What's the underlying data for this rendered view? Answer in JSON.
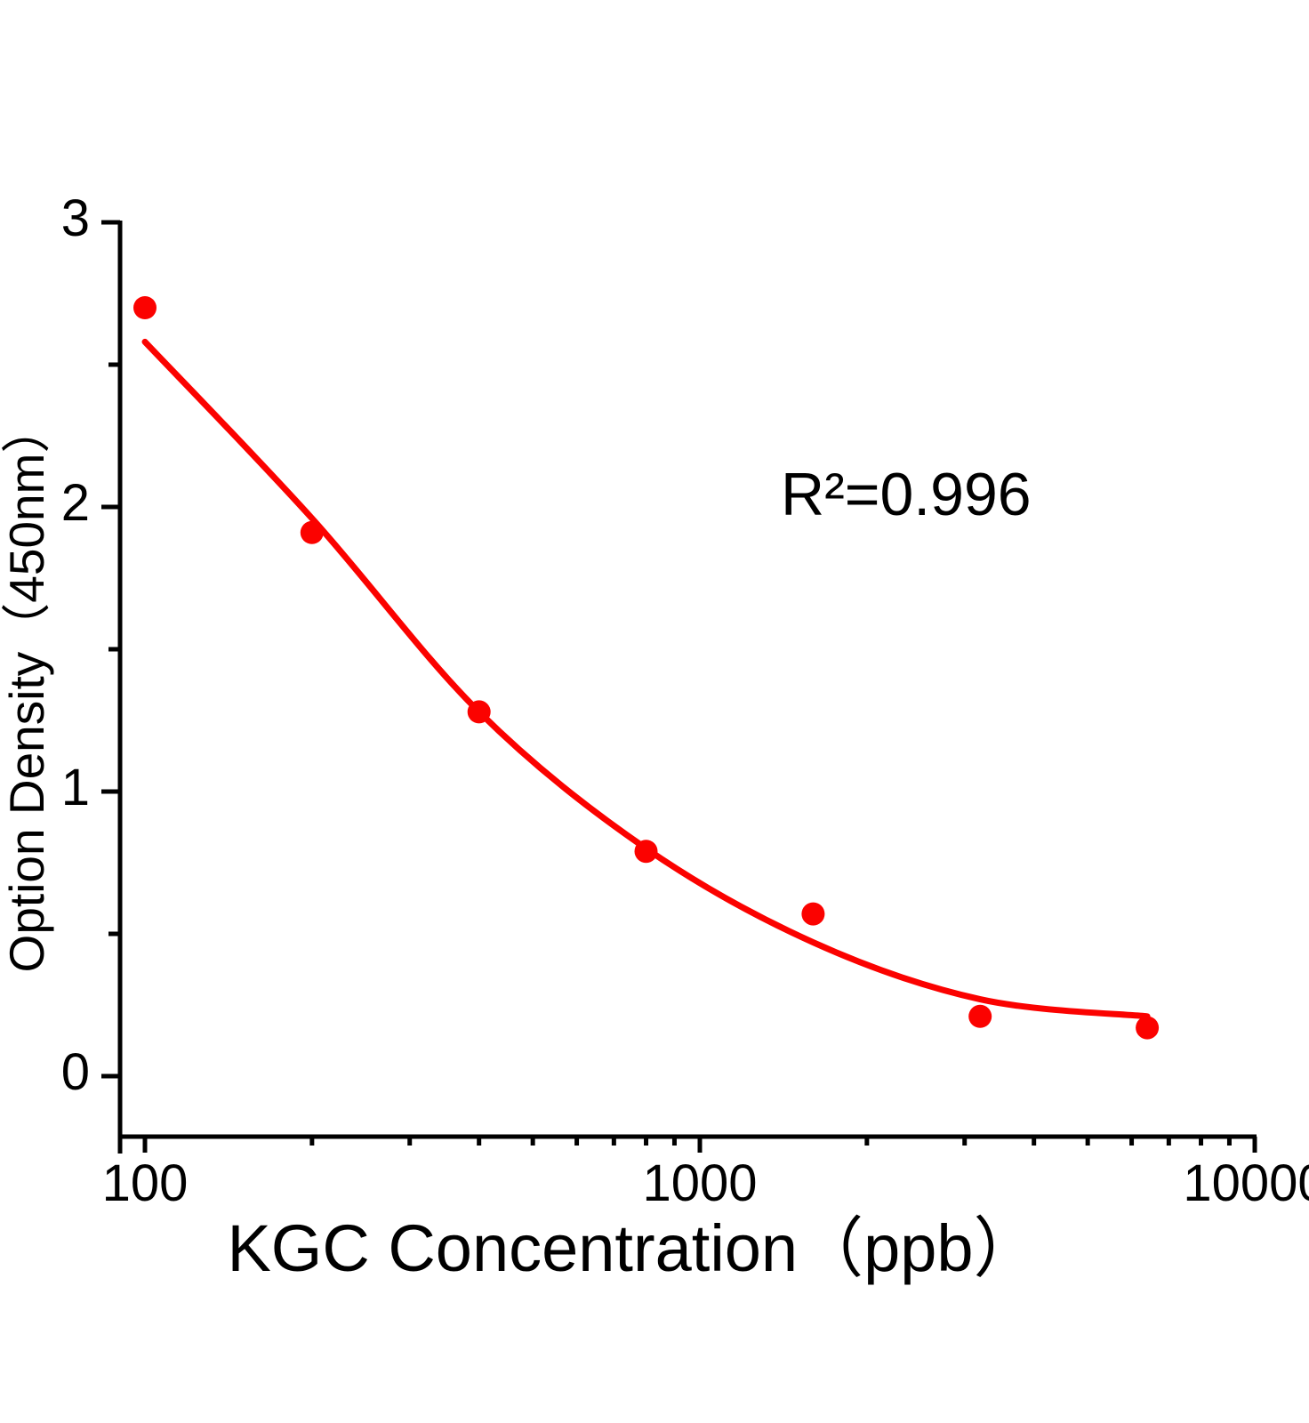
{
  "chart_data": {
    "type": "scatter",
    "title": "",
    "xlabel": "KGC Concentration（ppb）",
    "ylabel": "Option Density（450nm）",
    "annotation": "R²=0.996",
    "x_scale": "log",
    "xlim": [
      90,
      10000
    ],
    "ylim": [
      -0.2,
      3.0
    ],
    "grid": "off",
    "legend": "none",
    "x_major_ticks": [
      100,
      1000,
      10000
    ],
    "x_major_tick_labels": [
      "100",
      "1000",
      "10000"
    ],
    "x_minor_ticks": [
      200,
      300,
      400,
      500,
      600,
      700,
      800,
      900,
      2000,
      3000,
      4000,
      5000,
      6000,
      7000,
      8000,
      9000
    ],
    "y_major_ticks": [
      0,
      1,
      2,
      3
    ],
    "y_major_tick_labels": [
      "0",
      "1",
      "2",
      "3"
    ],
    "y_minor_ticks": [
      0.5,
      1.5,
      2.5
    ],
    "series": [
      {
        "name": "standard-points",
        "type": "scatter",
        "color": "#fb0200",
        "points": [
          [
            100,
            2.7
          ],
          [
            200,
            1.91
          ],
          [
            400,
            1.28
          ],
          [
            800,
            0.79
          ],
          [
            1600,
            0.57
          ],
          [
            3200,
            0.21
          ],
          [
            6400,
            0.17
          ]
        ]
      },
      {
        "name": "4pl-fit-curve",
        "type": "line",
        "color": "#fb0200",
        "points": [
          [
            100,
            2.58
          ],
          [
            200,
            1.96
          ],
          [
            400,
            1.28
          ],
          [
            800,
            0.8
          ],
          [
            1600,
            0.47
          ],
          [
            3200,
            0.27
          ],
          [
            6400,
            0.21
          ]
        ]
      }
    ],
    "colors": {
      "series": "#fb0200",
      "axis": "#000000",
      "background": "#ffffff"
    }
  }
}
